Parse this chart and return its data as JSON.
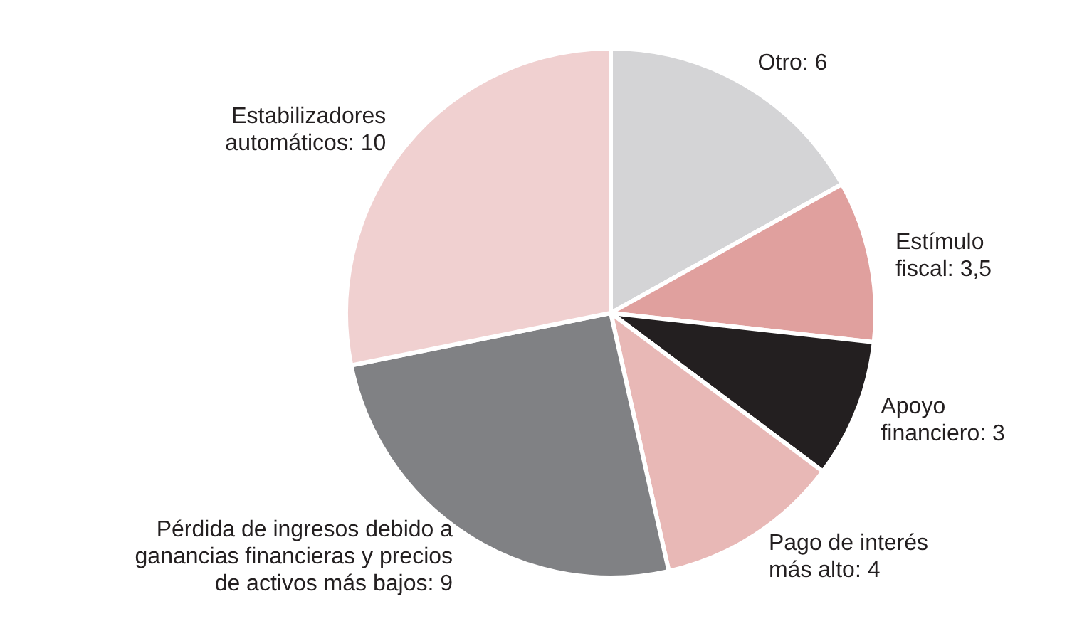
{
  "chart_data": {
    "type": "pie",
    "categories": [
      "Otro",
      "Estímulo fiscal",
      "Apoyo financiero",
      "Pago de interés más alto",
      "Pérdida de ingresos debido a ganancias financieras y precios de activos más bajos",
      "Estabilizadores automáticos"
    ],
    "values": [
      6,
      3.5,
      3,
      4,
      9,
      10
    ],
    "value_labels": [
      "6",
      "3,5",
      "3",
      "4",
      "9",
      "10"
    ],
    "colors": [
      "#d4d4d6",
      "#e0a09e",
      "#231f20",
      "#e8b8b6",
      "#808184",
      "#f0d0d0"
    ],
    "legend": false
  }
}
